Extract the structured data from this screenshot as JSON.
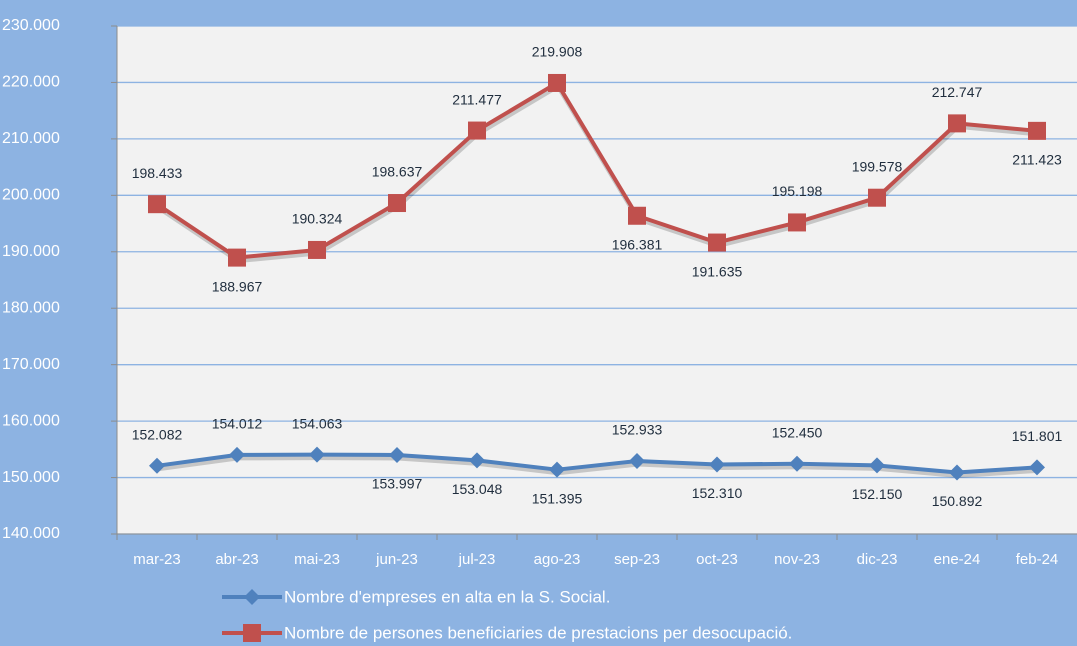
{
  "chart_data": {
    "type": "line",
    "categories": [
      "mar-23",
      "abr-23",
      "mai-23",
      "jun-23",
      "jul-23",
      "ago-23",
      "sep-23",
      "oct-23",
      "nov-23",
      "dic-23",
      "ene-24",
      "feb-24"
    ],
    "series": [
      {
        "name": "Nombre d'empreses en alta en la S. Social.",
        "color": "#4f81bd",
        "marker": "diamond",
        "values": [
          152082,
          154012,
          154063,
          153997,
          153048,
          151395,
          152933,
          152310,
          152450,
          152150,
          150892,
          151801
        ],
        "value_labels": [
          "152.082",
          "154.012",
          "154.063",
          "153.997",
          "153.048",
          "151.395",
          "152.933",
          "152.310",
          "152.450",
          "152.150",
          "150.892",
          "151.801"
        ]
      },
      {
        "name": "Nombre de persones beneficiaries de prestacions per desocupació.",
        "color": "#c0504d",
        "marker": "square",
        "values": [
          198433,
          188967,
          190324,
          198637,
          211477,
          219908,
          196381,
          191635,
          195198,
          199578,
          212747,
          211423
        ],
        "value_labels": [
          "198.433",
          "188.967",
          "190.324",
          "198.637",
          "211.477",
          "219.908",
          "196.381",
          "191.635",
          "195.198",
          "199.578",
          "212.747",
          "211.423"
        ]
      }
    ],
    "ylim": [
      140000,
      230000
    ],
    "yticks": [
      {
        "value": 140000,
        "label": "140.000"
      },
      {
        "value": 150000,
        "label": "150.000"
      },
      {
        "value": 160000,
        "label": "160.000"
      },
      {
        "value": 170000,
        "label": "170.000"
      },
      {
        "value": 180000,
        "label": "180.000"
      },
      {
        "value": 190000,
        "label": "190.000"
      },
      {
        "value": 200000,
        "label": "200.000"
      },
      {
        "value": 210000,
        "label": "210.000"
      },
      {
        "value": 220000,
        "label": "220.000"
      },
      {
        "value": 230000,
        "label": "230.000"
      }
    ],
    "grid": true
  }
}
